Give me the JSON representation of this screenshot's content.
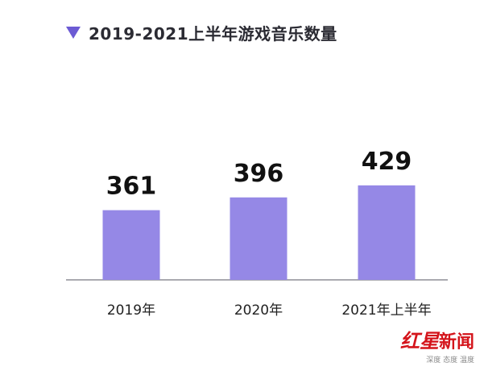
{
  "header": {
    "title": "2019-2021上半年游戏音乐数量",
    "accent_color": "#6c5bd4"
  },
  "chart_data": {
    "type": "bar",
    "title": "2019-2021上半年游戏音乐数量",
    "categories": [
      "2019年",
      "2020年",
      "2021年上半年"
    ],
    "values": [
      361,
      396,
      429
    ],
    "xlabel": "",
    "ylabel": "",
    "bar_color": "#9588e6",
    "grid": false
  },
  "watermark": {
    "brand_red": "红星",
    "brand_news": "新闻",
    "tagline": "深度 态度 温度"
  }
}
